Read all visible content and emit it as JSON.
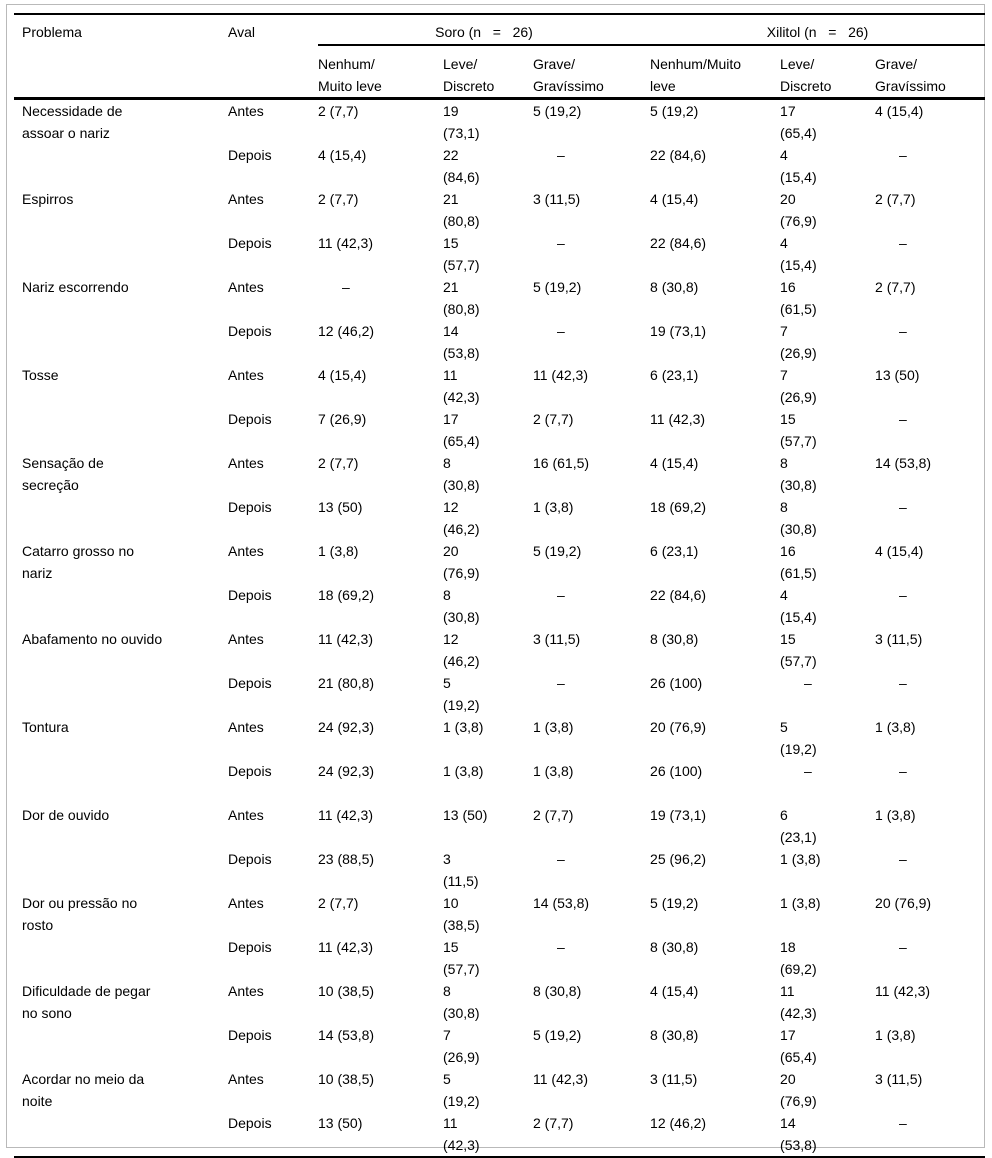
{
  "page": {
    "background_color": "#ffffff",
    "frame_color": "#b9b9b9",
    "text_color": "#000000"
  },
  "table": {
    "missing_marker": "–",
    "header": {
      "problema": "Problema",
      "aval": "Aval",
      "soro": "Soro (n   =   26)",
      "xilitol": "Xilitol (n   =   26)",
      "subheaders": [
        "Nenhum/\nMuito leve",
        "Leve/\nDiscreto",
        "Grave/\nGravíssimo",
        "Nenhum/Muito\nleve",
        "Leve/\nDiscreto",
        "Grave/\nGravíssimo"
      ]
    },
    "rows": [
      {
        "problema": "Necessidade de\nassoar o nariz",
        "antes": {
          "label": "Antes",
          "values": [
            "2 (7,7)",
            "19\n(73,1)",
            "5 (19,2)",
            "5 (19,2)",
            "17\n(65,4)",
            "4 (15,4)"
          ]
        },
        "depois": {
          "label": "Depois",
          "values": [
            "4 (15,4)",
            "22\n(84,6)",
            "–",
            "22 (84,6)",
            "4\n(15,4)",
            "–"
          ]
        }
      },
      {
        "problema": "Espirros",
        "antes": {
          "label": "Antes",
          "values": [
            "2 (7,7)",
            "21\n(80,8)",
            "3 (11,5)",
            "4 (15,4)",
            "20\n(76,9)",
            "2 (7,7)"
          ]
        },
        "depois": {
          "label": "Depois",
          "values": [
            "11 (42,3)",
            "15\n(57,7)",
            "–",
            "22 (84,6)",
            "4\n(15,4)",
            "–"
          ]
        }
      },
      {
        "problema": "Nariz escorrendo",
        "antes": {
          "label": "Antes",
          "values": [
            "–",
            "21\n(80,8)",
            "5 (19,2)",
            "8 (30,8)",
            "16\n(61,5)",
            "2 (7,7)"
          ]
        },
        "depois": {
          "label": "Depois",
          "values": [
            "12 (46,2)",
            "14\n(53,8)",
            "–",
            "19 (73,1)",
            "7\n(26,9)",
            "–"
          ]
        }
      },
      {
        "problema": "Tosse",
        "antes": {
          "label": "Antes",
          "values": [
            "4 (15,4)",
            "11\n(42,3)",
            "11 (42,3)",
            "6 (23,1)",
            "7\n(26,9)",
            "13 (50)"
          ]
        },
        "depois": {
          "label": "Depois",
          "values": [
            "7 (26,9)",
            "17\n(65,4)",
            "2 (7,7)",
            "11 (42,3)",
            "15\n(57,7)",
            "–"
          ]
        }
      },
      {
        "problema": "Sensação de\nsecreção",
        "antes": {
          "label": "Antes",
          "values": [
            "2 (7,7)",
            "8\n(30,8)",
            "16 (61,5)",
            "4 (15,4)",
            "8\n(30,8)",
            "14 (53,8)"
          ]
        },
        "depois": {
          "label": "Depois",
          "values": [
            "13 (50)",
            "12\n(46,2)",
            "1 (3,8)",
            "18 (69,2)",
            "8\n(30,8)",
            "–"
          ]
        }
      },
      {
        "problema": "Catarro grosso no\nnariz",
        "antes": {
          "label": "Antes",
          "values": [
            "1 (3,8)",
            "20\n(76,9)",
            "5 (19,2)",
            "6 (23,1)",
            "16\n(61,5)",
            "4 (15,4)"
          ]
        },
        "depois": {
          "label": "Depois",
          "values": [
            "18 (69,2)",
            "8\n(30,8)",
            "–",
            "22 (84,6)",
            "4\n(15,4)",
            "–"
          ]
        }
      },
      {
        "problema": "Abafamento no ouvido",
        "antes": {
          "label": "Antes",
          "values": [
            "11 (42,3)",
            "12\n(46,2)",
            "3 (11,5)",
            "8 (30,8)",
            "15\n(57,7)",
            "3 (11,5)"
          ]
        },
        "depois": {
          "label": "Depois",
          "values": [
            "21 (80,8)",
            "5\n(19,2)",
            "–",
            "26 (100)",
            "–",
            "–"
          ]
        }
      },
      {
        "problema": "Tontura",
        "antes": {
          "label": "Antes",
          "values": [
            "24 (92,3)",
            "1 (3,8)",
            "1 (3,8)",
            "20 (76,9)",
            "5\n(19,2)",
            "1 (3,8)"
          ]
        },
        "depois": {
          "label": "Depois",
          "values": [
            "24 (92,3)",
            "1 (3,8)",
            "1 (3,8)",
            "26 (100)",
            "–",
            "–"
          ]
        }
      },
      {
        "problema": "Dor de ouvido",
        "antes": {
          "label": "Antes",
          "values": [
            "11 (42,3)",
            "13 (50)",
            "2 (7,7)",
            "19 (73,1)",
            "6\n(23,1)",
            "1 (3,8)"
          ]
        },
        "depois": {
          "label": "Depois",
          "values": [
            "23 (88,5)",
            "3\n(11,5)",
            "–",
            "25 (96,2)",
            "1 (3,8)",
            "–"
          ]
        }
      },
      {
        "problema": "Dor ou pressão no\nrosto",
        "antes": {
          "label": "Antes",
          "values": [
            "2 (7,7)",
            "10\n(38,5)",
            "14 (53,8)",
            "5 (19,2)",
            "1 (3,8)",
            "20 (76,9)"
          ]
        },
        "depois": {
          "label": "Depois",
          "values": [
            "11 (42,3)",
            "15\n(57,7)",
            "–",
            "8 (30,8)",
            "18\n(69,2)",
            "–"
          ]
        }
      },
      {
        "problema": "Dificuldade de pegar\nno sono",
        "antes": {
          "label": "Antes",
          "values": [
            "10 (38,5)",
            "8\n(30,8)",
            "8 (30,8)",
            "4 (15,4)",
            "11\n(42,3)",
            "11 (42,3)"
          ]
        },
        "depois": {
          "label": "Depois",
          "values": [
            "14 (53,8)",
            "7\n(26,9)",
            "5 (19,2)",
            "8 (30,8)",
            "17\n(65,4)",
            "1 (3,8)"
          ]
        }
      },
      {
        "problema": "Acordar no meio da\nnoite",
        "antes": {
          "label": "Antes",
          "values": [
            "10 (38,5)",
            "5\n(19,2)",
            "11 (42,3)",
            "3 (11,5)",
            "20\n(76,9)",
            "3 (11,5)"
          ]
        },
        "depois": {
          "label": "Depois",
          "values": [
            "13 (50)",
            "11\n(42,3)",
            "2 (7,7)",
            "12 (46,2)",
            "14\n(53,8)",
            "–"
          ]
        }
      }
    ]
  }
}
